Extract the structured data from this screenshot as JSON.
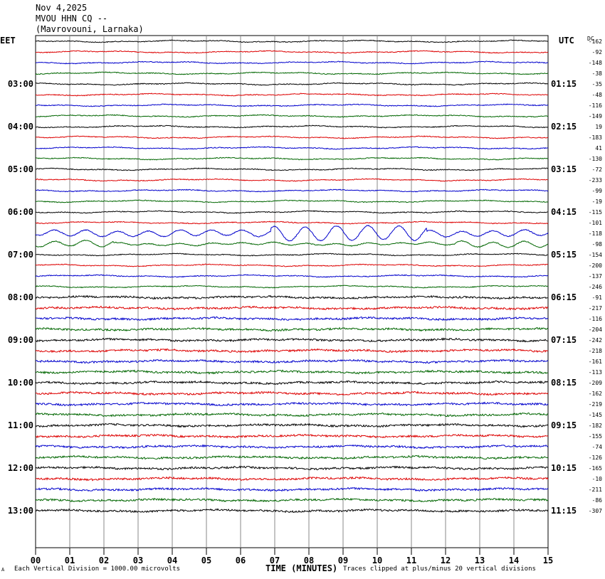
{
  "header": {
    "date": "Nov 4,2025",
    "station": "MVOU HHN CQ --",
    "location": "(Mavrovouni, Larnaka)"
  },
  "left_zone_label": "EET",
  "right_zone_label": "UTC",
  "dc_label": "DC",
  "footer": {
    "left_mark": "A",
    "scale_note": "Each Vertical Division = 1000.00 microvolts",
    "clip_note": "Traces clipped at plus/minus 20 vertical divisions"
  },
  "chart_data": {
    "type": "line",
    "title": "",
    "xlabel": "TIME (MINUTES)",
    "ylabel": "",
    "xlim": [
      0,
      15
    ],
    "x_ticks": [
      "00",
      "01",
      "02",
      "03",
      "04",
      "05",
      "06",
      "07",
      "08",
      "09",
      "10",
      "11",
      "12",
      "13",
      "14",
      "15"
    ],
    "left_hour_labels": [
      "03:00",
      "04:00",
      "05:00",
      "06:00",
      "07:00",
      "08:00",
      "09:00",
      "10:00",
      "11:00",
      "12:00",
      "13:00"
    ],
    "right_hour_labels": [
      "01:15",
      "02:15",
      "03:15",
      "04:15",
      "05:15",
      "06:15",
      "07:15",
      "08:15",
      "09:15",
      "10:15",
      "11:15"
    ],
    "trace_colors": [
      "#000000",
      "#dd0000",
      "#0000cc",
      "#006600"
    ],
    "dc_offsets": [
      -162,
      -92,
      -148,
      -38,
      -35,
      -48,
      -116,
      -149,
      19,
      -183,
      41,
      -130,
      -72,
      -233,
      -99,
      -19,
      -115,
      -101,
      -118,
      -98,
      -154,
      -200,
      -137,
      -246,
      -91,
      -217,
      -116,
      -204,
      -242,
      -218,
      -161,
      -113,
      -209,
      -162,
      -219,
      -145,
      -182,
      -155,
      -74,
      -126,
      -165,
      -10,
      -211,
      -86,
      -307
    ],
    "scale_microvolts_per_division": 1000.0,
    "clip_divisions": 20
  }
}
